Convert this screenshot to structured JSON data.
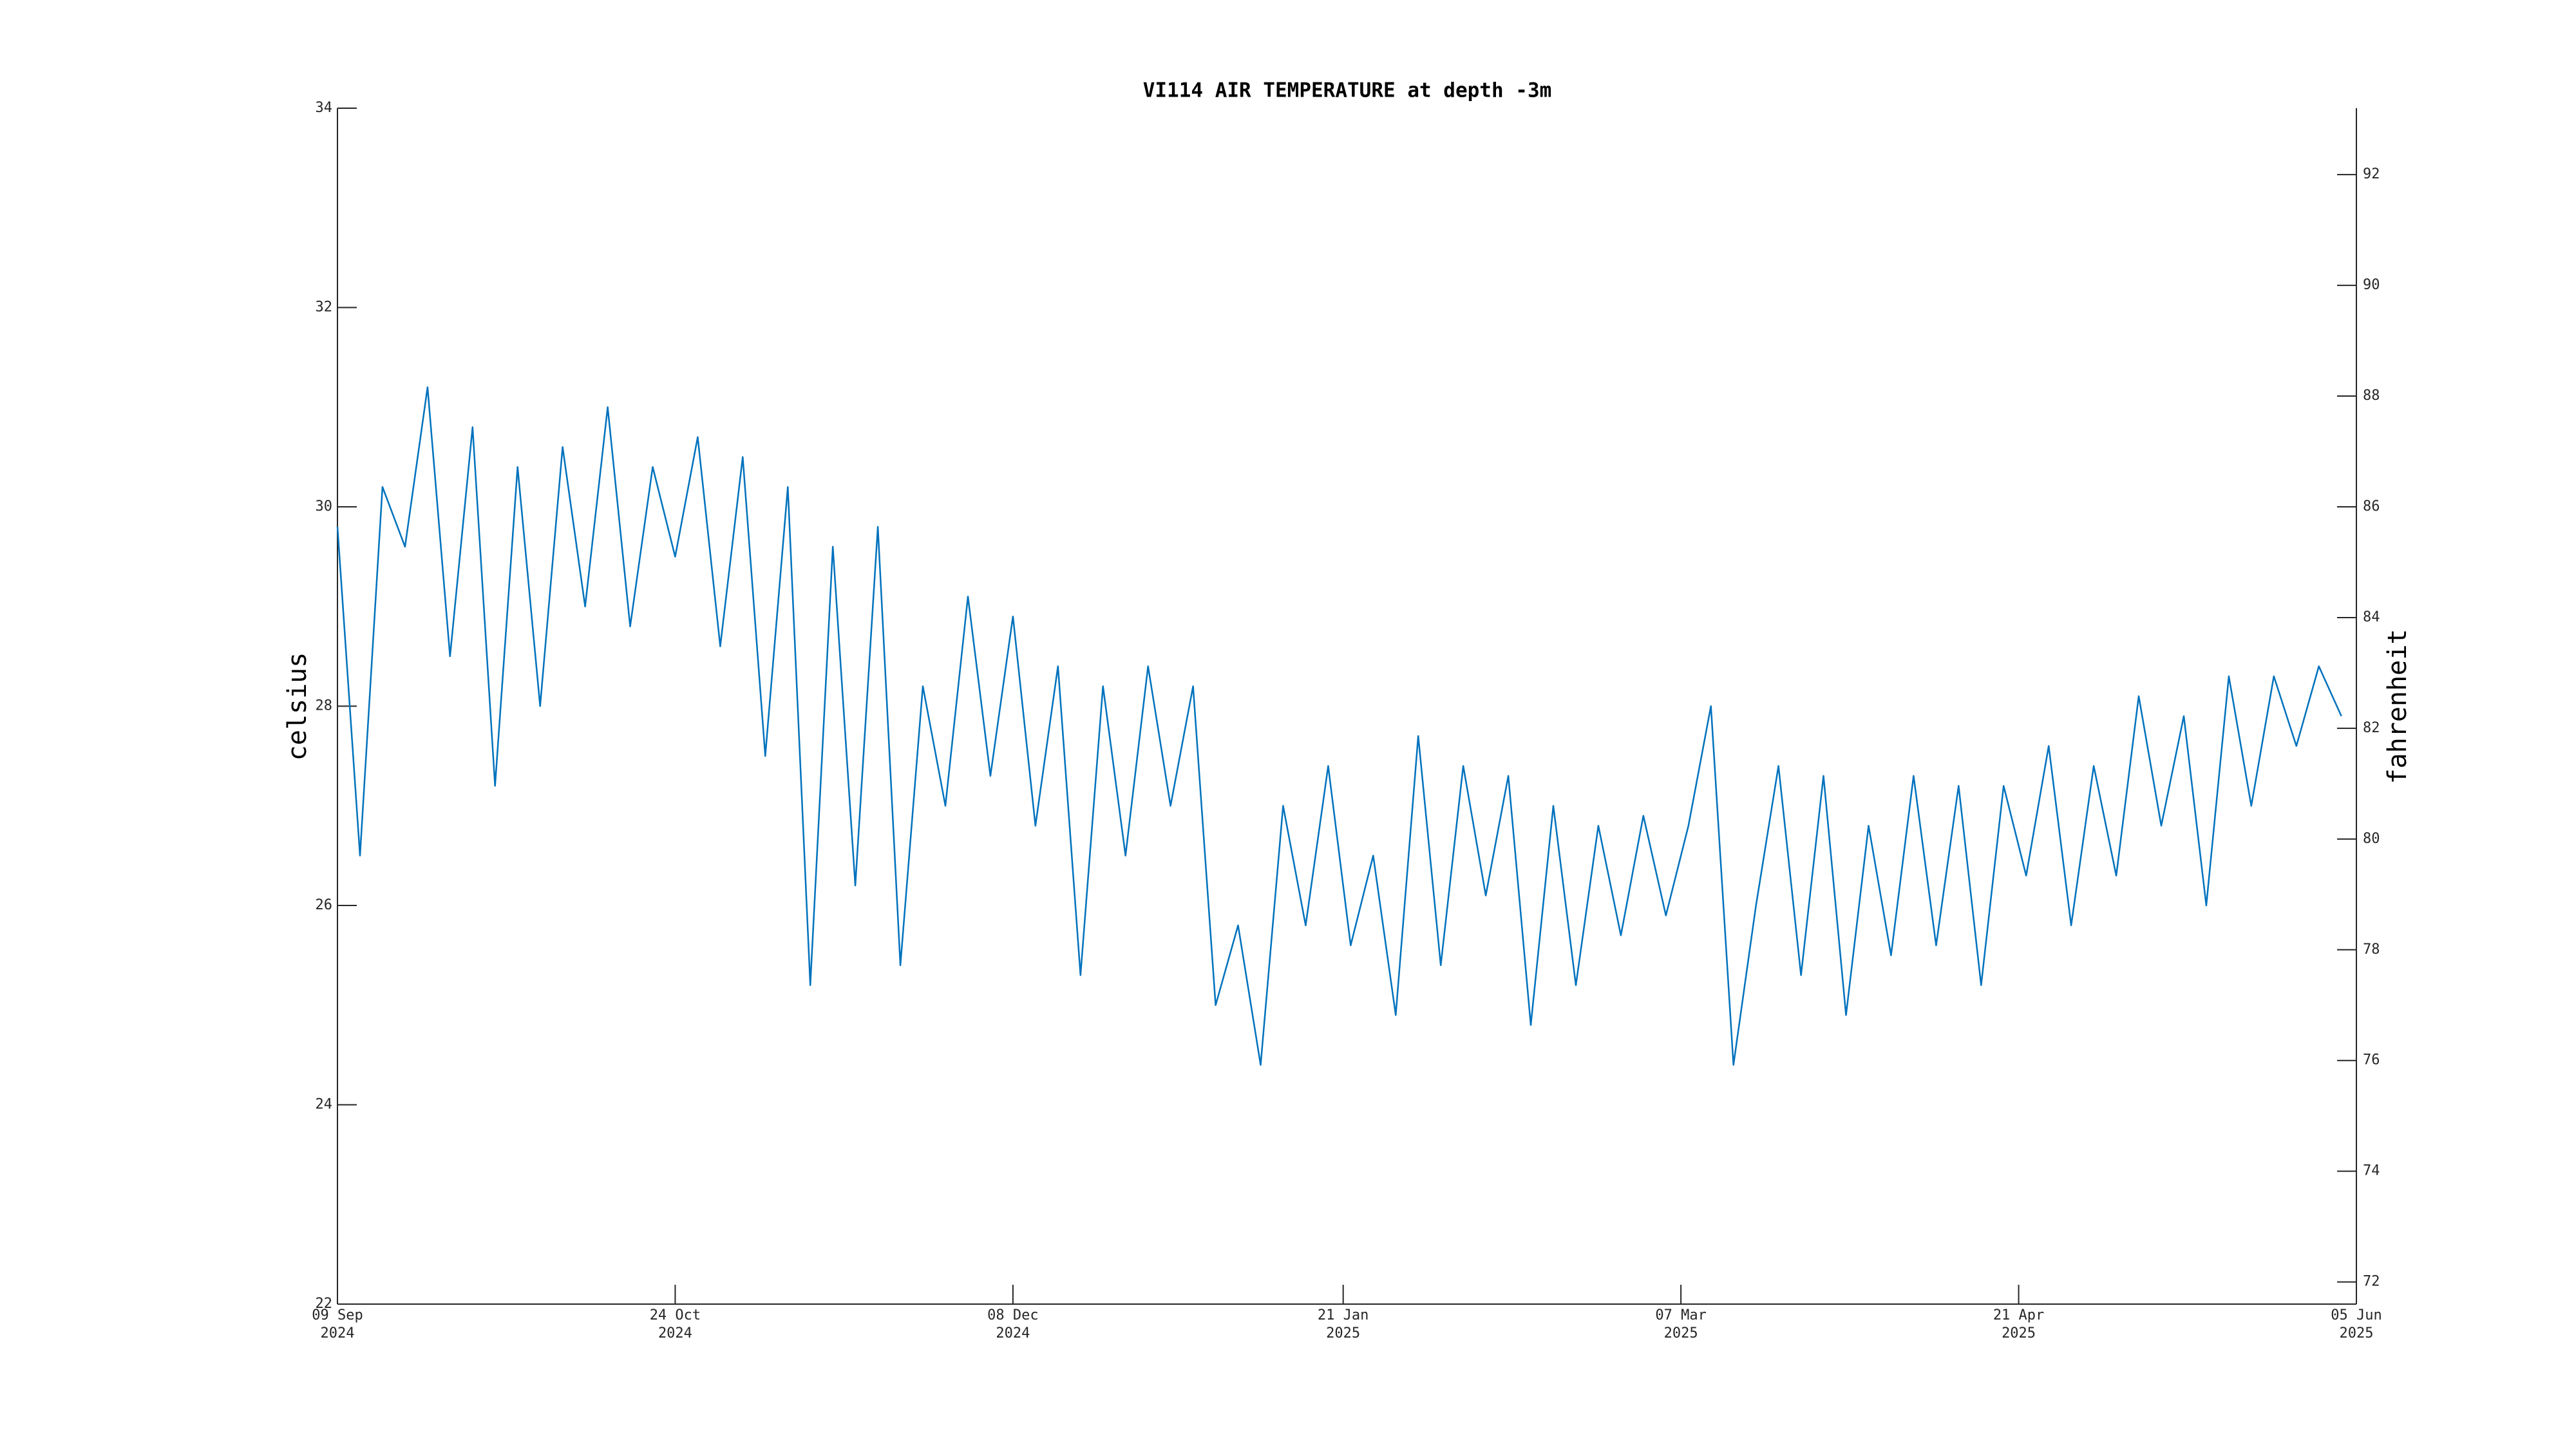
{
  "chart_data": {
    "type": "line",
    "title": "VI114 AIR TEMPERATURE at depth -3m",
    "y_label": "celsius",
    "y2_label": "fahrenheit",
    "x": [
      "2024-09-09",
      "2024-09-12",
      "2024-09-15",
      "2024-09-18",
      "2024-09-21",
      "2024-09-24",
      "2024-09-27",
      "2024-09-30",
      "2024-10-03",
      "2024-10-06",
      "2024-10-09",
      "2024-10-12",
      "2024-10-15",
      "2024-10-18",
      "2024-10-21",
      "2024-10-24",
      "2024-10-27",
      "2024-10-30",
      "2024-11-02",
      "2024-11-05",
      "2024-11-08",
      "2024-11-11",
      "2024-11-14",
      "2024-11-17",
      "2024-11-20",
      "2024-11-23",
      "2024-11-26",
      "2024-11-29",
      "2024-12-02",
      "2024-12-05",
      "2024-12-08",
      "2024-12-11",
      "2024-12-14",
      "2024-12-17",
      "2024-12-20",
      "2024-12-23",
      "2024-12-26",
      "2024-12-29",
      "2025-01-01",
      "2025-01-04",
      "2025-01-07",
      "2025-01-10",
      "2025-01-13",
      "2025-01-16",
      "2025-01-19",
      "2025-01-22",
      "2025-01-25",
      "2025-01-28",
      "2025-01-31",
      "2025-02-03",
      "2025-02-06",
      "2025-02-09",
      "2025-02-12",
      "2025-02-15",
      "2025-02-18",
      "2025-02-21",
      "2025-02-24",
      "2025-02-27",
      "2025-03-02",
      "2025-03-05",
      "2025-03-08",
      "2025-03-11",
      "2025-03-14",
      "2025-03-17",
      "2025-03-20",
      "2025-03-23",
      "2025-03-26",
      "2025-03-29",
      "2025-04-01",
      "2025-04-04",
      "2025-04-07",
      "2025-04-10",
      "2025-04-13",
      "2025-04-16",
      "2025-04-19",
      "2025-04-22",
      "2025-04-25",
      "2025-04-28",
      "2025-05-01",
      "2025-05-04",
      "2025-05-07",
      "2025-05-10",
      "2025-05-13",
      "2025-05-16",
      "2025-05-19",
      "2025-05-22",
      "2025-05-25",
      "2025-05-28",
      "2025-05-31",
      "2025-06-03"
    ],
    "series": [
      {
        "name": "VI114 AIR TEMPERATURE",
        "color": "#0072bd",
        "values": [
          29.8,
          26.5,
          30.2,
          29.6,
          31.2,
          28.5,
          30.8,
          27.2,
          30.4,
          28.0,
          30.6,
          29.0,
          31.0,
          28.8,
          30.4,
          29.5,
          30.7,
          28.6,
          30.5,
          27.5,
          30.2,
          25.2,
          29.6,
          26.2,
          29.8,
          25.4,
          28.2,
          27.0,
          29.1,
          27.3,
          28.9,
          26.8,
          28.4,
          25.3,
          28.2,
          26.5,
          28.4,
          27.0,
          28.2,
          25.0,
          25.8,
          24.4,
          27.0,
          25.8,
          27.4,
          25.6,
          26.5,
          24.9,
          27.7,
          25.4,
          27.4,
          26.1,
          27.3,
          24.8,
          27.0,
          25.2,
          26.8,
          25.7,
          26.9,
          25.9,
          26.8,
          28.0,
          24.4,
          26.0,
          27.4,
          25.3,
          27.3,
          24.9,
          26.8,
          25.5,
          27.3,
          25.6,
          27.2,
          25.2,
          27.2,
          26.3,
          27.6,
          25.8,
          27.4,
          26.3,
          28.1,
          26.8,
          27.9,
          26.0,
          28.3,
          27.0,
          28.3,
          27.6,
          28.4,
          27.9
        ]
      }
    ],
    "xlim": [
      "2024-09-09",
      "2025-06-05"
    ],
    "xticks": [
      {
        "value": "2024-09-09",
        "label": [
          "09 Sep",
          "2024"
        ]
      },
      {
        "value": "2024-10-24",
        "label": [
          "24 Oct",
          "2024"
        ]
      },
      {
        "value": "2024-12-08",
        "label": [
          "08 Dec",
          "2024"
        ]
      },
      {
        "value": "2025-01-21",
        "label": [
          "21 Jan",
          "2025"
        ]
      },
      {
        "value": "2025-03-07",
        "label": [
          "07 Mar",
          "2025"
        ]
      },
      {
        "value": "2025-04-21",
        "label": [
          "21 Apr",
          "2025"
        ]
      },
      {
        "value": "2025-06-05",
        "label": [
          "05 Jun",
          "2025"
        ]
      }
    ],
    "ylim": [
      22,
      34
    ],
    "yticks": [
      22,
      24,
      26,
      28,
      30,
      32,
      34
    ],
    "y2lim": [
      71.6,
      93.2
    ],
    "y2ticks": [
      72,
      74,
      76,
      78,
      80,
      82,
      84,
      86,
      88,
      90,
      92
    ],
    "grid": false
  }
}
